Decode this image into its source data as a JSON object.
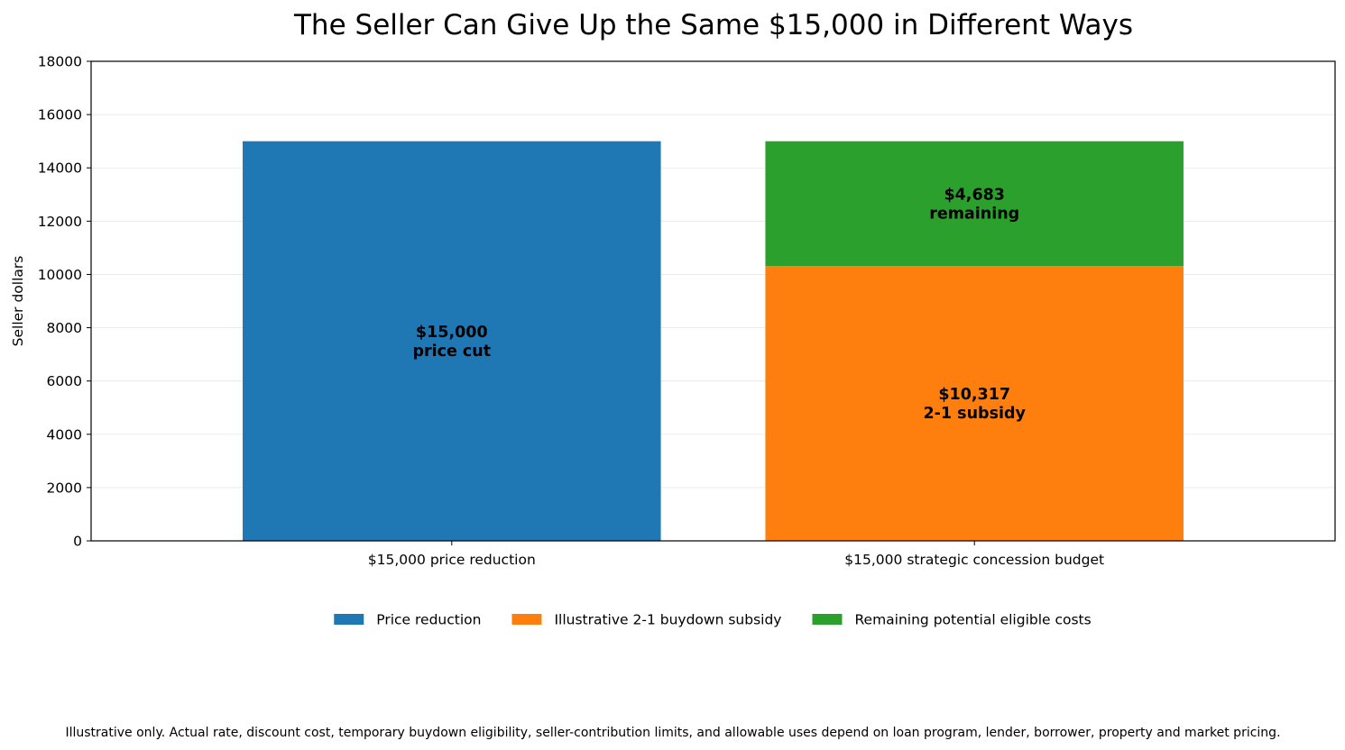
{
  "chart_data": {
    "type": "bar",
    "stacked": true,
    "title": "The Seller Can Give Up the Same $15,000 in Different Ways",
    "xlabel": "",
    "ylabel": "Seller dollars",
    "ylim": [
      0,
      18000
    ],
    "yticks": [
      "0",
      "2000",
      "4000",
      "6000",
      "8000",
      "10000",
      "12000",
      "14000",
      "16000",
      "18000"
    ],
    "categories": [
      "$15,000 price reduction",
      "$15,000 strategic concession budget"
    ],
    "grid": "horizontal",
    "legend_position": "bottom-center",
    "series": [
      {
        "name": "Price reduction",
        "color": "#1f77b4",
        "values": [
          15000,
          0
        ],
        "labels": [
          "$15,000\nprice cut",
          ""
        ]
      },
      {
        "name": "Illustrative 2-1 buydown subsidy",
        "color": "#ff7f0e",
        "values": [
          0,
          10317
        ],
        "labels": [
          "",
          "$10,317\n2-1 subsidy"
        ]
      },
      {
        "name": "Remaining potential eligible costs",
        "color": "#2ca02c",
        "values": [
          0,
          4683
        ],
        "labels": [
          "",
          "$4,683\nremaining"
        ]
      }
    ],
    "footnote": "Illustrative only. Actual rate, discount cost, temporary buydown eligibility, seller-contribution limits, and allowable uses depend on loan program, lender, borrower, property and market pricing."
  }
}
